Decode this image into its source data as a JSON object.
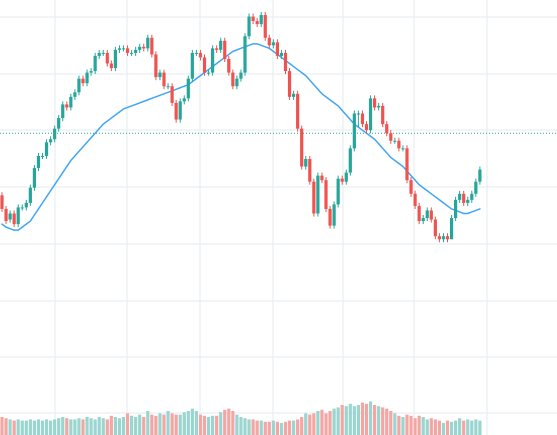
{
  "chart_data": {
    "type": "candlestick",
    "title": "",
    "xlabel": "",
    "ylabel": "",
    "grid": true,
    "legend": "none",
    "x": [
      1,
      2,
      3,
      4,
      5,
      6,
      7,
      8,
      9,
      10,
      11,
      12,
      13,
      14,
      15,
      16,
      17,
      18,
      19,
      20,
      21,
      22,
      23,
      24,
      25,
      26,
      27,
      28,
      29,
      30,
      31,
      32,
      33,
      34,
      35,
      36,
      37,
      38,
      39,
      40,
      41,
      42,
      43,
      44,
      45,
      46,
      47,
      48,
      49,
      50,
      51,
      52,
      53,
      54,
      55,
      56,
      57,
      58,
      59,
      60,
      61,
      62,
      63,
      64,
      65,
      66,
      67,
      68,
      69,
      70,
      71,
      72,
      73,
      74,
      75,
      76,
      77,
      78,
      79,
      80,
      81,
      82,
      83,
      84,
      85,
      86,
      87,
      88,
      89,
      90,
      91,
      92,
      93,
      94,
      95,
      96,
      97,
      98,
      99,
      100,
      101,
      102,
      103,
      104,
      105,
      106,
      107,
      108,
      109,
      110,
      111,
      112,
      113,
      114,
      115,
      116,
      117,
      118,
      119
    ],
    "ylim": [
      0,
      100
    ],
    "volume_ylim": [
      0,
      100
    ],
    "colors": {
      "up": "#26a69a",
      "down": "#ef5350",
      "ma": "#42a5f5",
      "up_volume": "#9ad5cf",
      "down_volume": "#f3a6a4",
      "price_line": "#26a69a",
      "grid": "#e6ebf1"
    },
    "last_price_line": 60,
    "series": [
      {
        "type": "candlestick",
        "open": [
          39.5,
          35,
          31.5,
          33.5,
          30,
          35.5,
          35.5,
          37,
          42,
          48.5,
          52.5,
          52.5,
          57,
          58,
          61.5,
          65,
          69.5,
          68.5,
          72,
          73.5,
          78,
          76.5,
          80,
          80.5,
          85.5,
          86.5,
          86.5,
          83,
          81.5,
          87.5,
          88,
          88,
          86.5,
          86.5,
          87.5,
          88.5,
          88,
          91.5,
          86,
          78.5,
          80,
          75.5,
          75.5,
          70,
          64.5,
          70.5,
          71.5,
          78,
          86.5,
          86.5,
          85,
          80,
          80,
          88,
          87.5,
          90.5,
          84.5,
          80,
          75.5,
          78,
          80,
          92,
          98.5,
          97,
          96,
          99,
          91.5,
          89,
          90,
          85.5,
          86.5,
          80.5,
          72,
          73,
          61.5,
          49,
          51.5,
          44,
          33.5,
          46,
          44.5,
          35,
          29.5,
          36.5,
          45,
          44,
          47,
          55,
          66.5,
          66.5,
          63,
          61,
          71.5,
          68.5,
          69,
          63,
          60,
          57.5,
          57.5,
          55,
          55,
          44.5,
          40,
          36,
          31,
          32,
          34.5,
          31.5,
          26,
          25,
          26,
          25,
          32,
          38,
          40,
          37,
          38,
          40,
          44
        ],
        "close": [
          35,
          31,
          33.5,
          30,
          35.5,
          35.5,
          37,
          42,
          48.5,
          52.5,
          52.5,
          57,
          58,
          61.5,
          65,
          69.5,
          68.5,
          72,
          73.5,
          78,
          76.5,
          80,
          80.5,
          85.5,
          86.5,
          86.5,
          83,
          81.5,
          87.5,
          88,
          88,
          86.5,
          86.5,
          87.5,
          88.5,
          88,
          91.5,
          86,
          78.5,
          80,
          75.5,
          75.5,
          70,
          64.5,
          70.5,
          71.5,
          78,
          86.5,
          86.5,
          85,
          80,
          80,
          88,
          87.5,
          90.5,
          84.5,
          80,
          75.5,
          78,
          80,
          92,
          98.5,
          97,
          96,
          99,
          91.5,
          89,
          90,
          85.5,
          86.5,
          80.5,
          72,
          73,
          61.5,
          49,
          51.5,
          44,
          33.5,
          46,
          44.5,
          35,
          29.5,
          36.5,
          45,
          44,
          47,
          55,
          66.5,
          66.5,
          63,
          61,
          71.5,
          68.5,
          69,
          63,
          60,
          57.5,
          57.5,
          55,
          55,
          44.5,
          40,
          36,
          31,
          32,
          34.5,
          31.5,
          26,
          25,
          26,
          25,
          32,
          38,
          40,
          37,
          38,
          40,
          44,
          48
        ],
        "high": [
          40.5,
          36,
          34.5,
          34.5,
          36.5,
          36.5,
          38,
          43,
          49.5,
          53.5,
          53.5,
          58,
          59,
          62.5,
          66,
          70.5,
          70.5,
          73,
          74.5,
          79,
          79,
          81,
          81.5,
          86.5,
          87.5,
          87.5,
          87.5,
          84,
          88.5,
          89,
          89,
          89,
          87.5,
          88.5,
          89.5,
          89.5,
          92.5,
          92.5,
          87,
          81,
          81,
          76.5,
          76.5,
          71,
          71.5,
          72.5,
          79,
          87.5,
          87.5,
          87.5,
          86,
          81,
          89,
          89,
          91.5,
          91.5,
          85.5,
          81,
          79,
          81,
          93,
          99.5,
          99.5,
          98,
          100,
          100,
          92.5,
          91,
          91,
          87.5,
          87.5,
          81.5,
          74,
          74,
          62.5,
          52.5,
          52.5,
          45,
          47,
          47,
          45.5,
          36,
          37.5,
          46,
          46,
          48,
          56,
          67.5,
          67.5,
          67.5,
          64,
          72.5,
          72.5,
          70,
          70,
          64,
          61,
          58.5,
          58.5,
          56,
          56,
          45.5,
          41,
          37,
          33,
          35.5,
          35.5,
          32.5,
          27,
          27,
          27,
          33,
          39,
          41,
          41,
          39,
          41,
          45,
          49
        ],
        "low": [
          34,
          30,
          30.5,
          29,
          29,
          34.5,
          34.5,
          36,
          41,
          47.5,
          51.5,
          51.5,
          56,
          57,
          60.5,
          64,
          67.5,
          67.5,
          71,
          72.5,
          75.5,
          75.5,
          79,
          79.5,
          84.5,
          85.5,
          82,
          80.5,
          80.5,
          86.5,
          87,
          85.5,
          85.5,
          85.5,
          86.5,
          87,
          87,
          85,
          77.5,
          77.5,
          74.5,
          74.5,
          69,
          63.5,
          63.5,
          69.5,
          70.5,
          77,
          85.5,
          84,
          79,
          79,
          79,
          86.5,
          86.5,
          83.5,
          79,
          74.5,
          74.5,
          77,
          79,
          91,
          96,
          95,
          95,
          90.5,
          88,
          88,
          84.5,
          84.5,
          79.5,
          71,
          71,
          60.5,
          48,
          48,
          43,
          32.5,
          32.5,
          43.5,
          34,
          28.5,
          28.5,
          35.5,
          43,
          43,
          46,
          54,
          62,
          62,
          60,
          60,
          67.5,
          67.5,
          62,
          59,
          56.5,
          56.5,
          54,
          54,
          43.5,
          39,
          35,
          30,
          30,
          31,
          30.5,
          25,
          24,
          24,
          24,
          25,
          31,
          37,
          36,
          36,
          37,
          39,
          43
        ]
      },
      {
        "type": "line",
        "values": [
          30,
          29,
          28.5,
          28,
          28,
          29,
          30,
          31,
          33,
          35,
          37,
          39,
          41,
          43,
          45,
          47,
          49,
          51,
          52.5,
          54,
          55.5,
          57,
          58.5,
          60,
          61.5,
          63,
          64,
          65,
          66,
          67,
          68,
          68.5,
          69,
          69.5,
          70,
          70.5,
          71,
          71.5,
          72,
          72.5,
          73,
          73.5,
          74,
          74.5,
          75,
          75.5,
          76,
          77,
          78,
          79,
          80,
          81,
          82,
          83,
          84,
          85,
          86,
          87,
          87.5,
          88,
          88.5,
          89,
          89.5,
          89.5,
          89,
          88.5,
          88,
          87,
          86,
          85,
          84,
          83,
          82,
          81,
          80,
          79,
          77.5,
          76,
          74.5,
          73,
          72,
          71,
          70,
          69,
          67.5,
          66,
          64.5,
          63,
          62,
          61,
          60,
          59,
          58,
          56.5,
          55,
          53.5,
          52,
          51,
          50,
          49,
          47.5,
          46,
          44.5,
          43,
          42,
          41,
          40,
          39,
          38,
          37,
          36,
          35,
          34.5,
          34,
          33.5,
          33.5,
          34,
          34.5,
          35
        ]
      }
    ],
    "volume": [
      15,
      14,
      13,
      12,
      13,
      12,
      12,
      13,
      12,
      13,
      12,
      13,
      12,
      13,
      14,
      15,
      14,
      13,
      13,
      14,
      13,
      15,
      14,
      13,
      15,
      14,
      13,
      16,
      15,
      14,
      15,
      18,
      16,
      15,
      17,
      15,
      20,
      17,
      16,
      18,
      17,
      20,
      18,
      17,
      17,
      19,
      20,
      22,
      20,
      17,
      16,
      15,
      16,
      16,
      19,
      21,
      22,
      20,
      17,
      15,
      14,
      13,
      13,
      12,
      12,
      11,
      11,
      12,
      11,
      10,
      11,
      12,
      12,
      13,
      15,
      18,
      17,
      18,
      20,
      21,
      18,
      20,
      22,
      23,
      25,
      24,
      26,
      24,
      25,
      27,
      26,
      28,
      25,
      24,
      23,
      22,
      20,
      18,
      16,
      15,
      17,
      16,
      14,
      16,
      15,
      13,
      14,
      13,
      12,
      10,
      12,
      11,
      12,
      14,
      12,
      13,
      12,
      13,
      12
    ]
  }
}
